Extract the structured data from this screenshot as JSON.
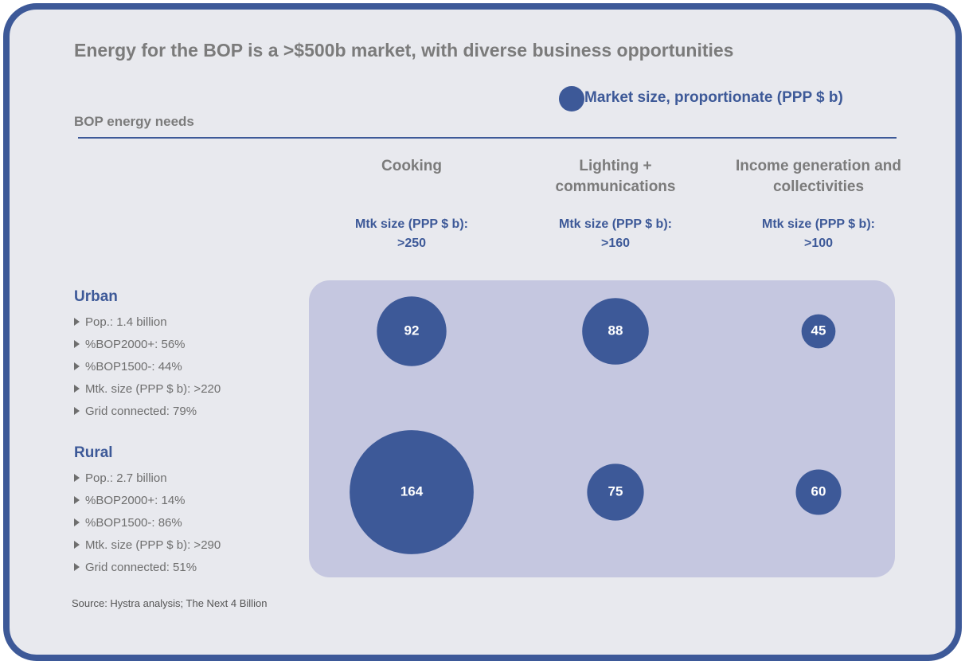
{
  "chart_data": {
    "type": "bubble",
    "title": "Energy for the BOP is a >$500b market, with diverse business opportunities",
    "size_legend": "Market size, proportionate (PPP $ b)",
    "subtitle": "BOP energy needs",
    "categories": [
      "Cooking",
      "Lighting + communications",
      "Income generation and collectivities"
    ],
    "category_notes": [
      "Mtk size (PPP $ b): >250",
      "Mtk size (PPP $ b): >160",
      "Mtk size (PPP $ b): >100"
    ],
    "series": [
      {
        "name": "Urban",
        "color": "#3d5998",
        "values": [
          92,
          88,
          45
        ],
        "details": [
          "Pop.: 1.4 billion",
          "%BOP2000+: 56%",
          "%BOP1500-: 44%",
          "Mtk. size (PPP $ b): >220",
          "Grid connected: 79%"
        ]
      },
      {
        "name": "Rural",
        "color": "#3d5998",
        "values": [
          164,
          75,
          60
        ],
        "details": [
          "Pop.: 2.7 billion",
          "%BOP2000+: 14%",
          "%BOP1500-: 86%",
          "Mtk. size (PPP $ b): >290",
          "Grid connected: 51%"
        ]
      }
    ],
    "source": "Source: Hystra analysis; The Next 4 Billion"
  }
}
